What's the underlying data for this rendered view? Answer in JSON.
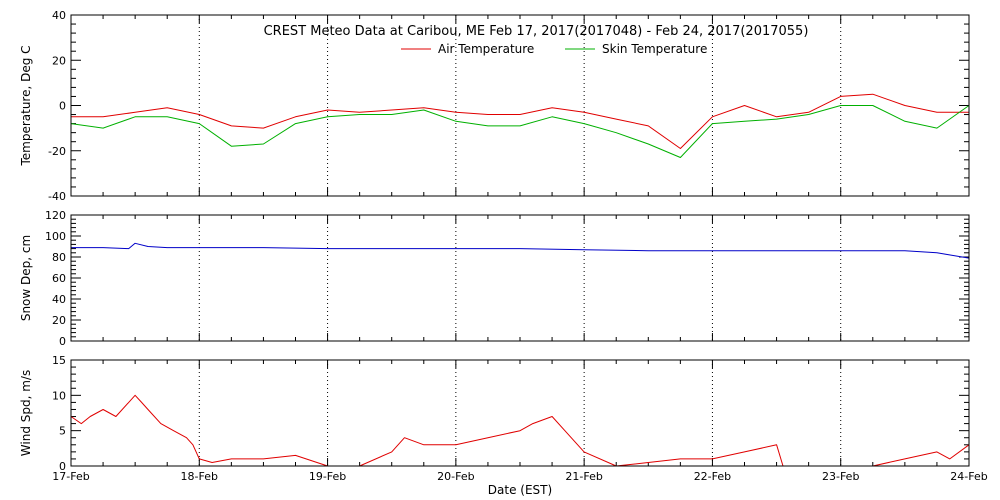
{
  "chart_data": [
    {
      "type": "line",
      "title": "CREST Meteo Data at Caribou, ME   Feb 17, 2017(2017048) - Feb 24, 2017(2017055)",
      "ylabel": "Temperature, Deg C",
      "ylim": [
        -40,
        40
      ],
      "yticks": [
        -40,
        -20,
        0,
        20,
        40
      ],
      "legend": "top-center",
      "grid": true,
      "series": [
        {
          "name": "Air Temperature",
          "color": "#e00000",
          "x": [
            0,
            0.25,
            0.5,
            0.75,
            1,
            1.25,
            1.5,
            1.75,
            2,
            2.25,
            2.5,
            2.75,
            3,
            3.25,
            3.5,
            3.75,
            4,
            4.25,
            4.5,
            4.75,
            5,
            5.25,
            5.5,
            5.75,
            6,
            6.25,
            6.5,
            6.75,
            7
          ],
          "y": [
            -5,
            -5,
            -3,
            -1,
            -4,
            -9,
            -10,
            -5,
            -2,
            -3,
            -2,
            -1,
            -3,
            -4,
            -4,
            -1,
            -3,
            -6,
            -9,
            -19,
            -5,
            0,
            -5,
            -3,
            4,
            5,
            0,
            -3,
            -3
          ]
        },
        {
          "name": "Skin Temperature",
          "color": "#00b000",
          "x": [
            0,
            0.25,
            0.5,
            0.75,
            1,
            1.25,
            1.5,
            1.75,
            2,
            2.25,
            2.5,
            2.75,
            3,
            3.25,
            3.5,
            3.75,
            4,
            4.25,
            4.5,
            4.75,
            5,
            5.25,
            5.5,
            5.75,
            6,
            6.25,
            6.5,
            6.75,
            7
          ],
          "y": [
            -8,
            -10,
            -5,
            -5,
            -8,
            -18,
            -17,
            -8,
            -5,
            -4,
            -4,
            -2,
            -7,
            -9,
            -9,
            -5,
            -8,
            -12,
            -17,
            -23,
            -8,
            -7,
            -6,
            -4,
            0,
            0,
            -7,
            -10,
            0
          ]
        }
      ]
    },
    {
      "type": "line",
      "ylabel": "Snow Dep, cm",
      "ylim": [
        0,
        120
      ],
      "yticks": [
        0,
        20,
        40,
        60,
        80,
        100,
        120
      ],
      "grid": true,
      "series": [
        {
          "color": "#0000c8",
          "x": [
            0,
            0.25,
            0.45,
            0.5,
            0.6,
            0.75,
            1,
            1.5,
            2,
            2.5,
            3,
            3.5,
            4,
            4.5,
            5,
            5.5,
            6,
            6.5,
            6.75,
            7
          ],
          "y": [
            89,
            89,
            88,
            93,
            90,
            89,
            89,
            89,
            88,
            88,
            88,
            88,
            87,
            86,
            86,
            86,
            86,
            86,
            84,
            79
          ]
        }
      ]
    },
    {
      "type": "line",
      "ylabel": "Wind Spd, m/s",
      "xlabel": "Date (EST)",
      "ylim": [
        0,
        15
      ],
      "yticks": [
        0,
        5,
        10,
        15
      ],
      "xlim": [
        0,
        7
      ],
      "xticks": [
        "17-Feb",
        "18-Feb",
        "19-Feb",
        "20-Feb",
        "21-Feb",
        "22-Feb",
        "23-Feb",
        "24-Feb"
      ],
      "grid": true,
      "series": [
        {
          "color": "#e00000",
          "x": [
            0,
            0.08,
            0.15,
            0.25,
            0.35,
            0.45,
            0.5,
            0.55,
            0.6,
            0.7,
            0.8,
            0.9,
            0.95,
            1,
            1.1,
            1.25,
            1.5,
            1.75,
            2,
            2.1,
            2.25,
            2.5,
            2.6,
            2.75,
            3,
            3.25,
            3.5,
            3.6,
            3.75,
            3.85,
            4,
            4.25,
            4.5,
            4.75,
            5,
            5.25,
            5.5,
            5.55,
            5.75,
            6,
            6.25,
            6.5,
            6.75,
            6.85,
            7
          ],
          "y": [
            7,
            6,
            7,
            8,
            7,
            9,
            10,
            9,
            8,
            6,
            5,
            4,
            3,
            1,
            0.5,
            1,
            1,
            1.5,
            0,
            0,
            0,
            2,
            4,
            3,
            3,
            4,
            5,
            6,
            7,
            5,
            2,
            0,
            0.5,
            1,
            1,
            2,
            3,
            0,
            0,
            0,
            0,
            1,
            2,
            1,
            3
          ]
        }
      ]
    }
  ]
}
